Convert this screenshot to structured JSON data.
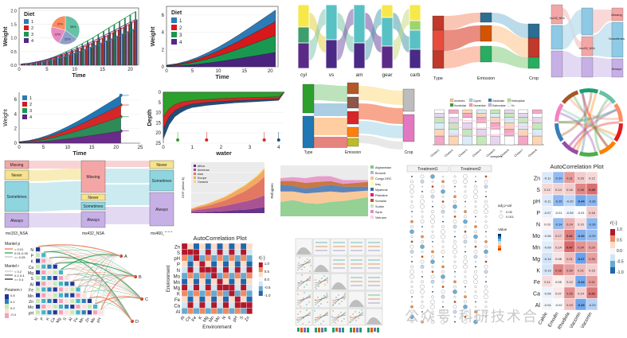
{
  "chart_data": [
    {
      "type": "bar",
      "panel": "diet-weight-bars",
      "legend_title": "Diet",
      "legend_entries": [
        "1",
        "2",
        "3",
        "4"
      ],
      "x": [
        0,
        1,
        2,
        3,
        4,
        5,
        6,
        7,
        8,
        9,
        10,
        11,
        12,
        13,
        14,
        15,
        16,
        17,
        18,
        19,
        20,
        21
      ],
      "xticks": [
        "0",
        "5",
        "10",
        "15",
        "20"
      ],
      "yticks": [
        "0.0",
        "0.5",
        "1.0",
        "1.5",
        "2.0"
      ],
      "xlabel": "Time",
      "ylabel": "Weight",
      "series": [
        {
          "name": "1",
          "values": [
            0.05,
            0.06,
            0.08,
            0.11,
            0.14,
            0.18,
            0.22,
            0.27,
            0.33,
            0.39,
            0.45,
            0.52,
            0.59,
            0.66,
            0.74,
            0.82,
            0.9,
            0.98,
            1.07,
            1.15,
            1.24,
            1.32
          ]
        },
        {
          "name": "2",
          "values": [
            0.05,
            0.06,
            0.09,
            0.12,
            0.16,
            0.21,
            0.27,
            0.33,
            0.4,
            0.47,
            0.55,
            0.63,
            0.72,
            0.81,
            0.9,
            1.0,
            1.1,
            1.2,
            1.3,
            1.4,
            1.5,
            1.62
          ]
        },
        {
          "name": "3",
          "values": [
            0.05,
            0.07,
            0.1,
            0.14,
            0.19,
            0.25,
            0.32,
            0.4,
            0.49,
            0.58,
            0.68,
            0.78,
            0.89,
            1.0,
            1.12,
            1.24,
            1.36,
            1.48,
            1.6,
            1.72,
            1.84,
            1.96
          ]
        },
        {
          "name": "4",
          "values": [
            0.05,
            0.07,
            0.1,
            0.14,
            0.19,
            0.24,
            0.3,
            0.37,
            0.44,
            0.52,
            0.6,
            0.69,
            0.78,
            0.87,
            0.97,
            1.07,
            1.17,
            1.27,
            1.37,
            1.47,
            1.57,
            1.67
          ]
        }
      ],
      "inset_pie": {
        "type": "pie",
        "labels": [
          "1",
          "2",
          "3",
          "4"
        ],
        "values": [
          35,
          22,
          22,
          21
        ],
        "slice_labels": [
          "35%",
          "22%",
          "22%",
          "21%"
        ]
      }
    },
    {
      "type": "area",
      "panel": "diet-weight-stacked",
      "legend_title": "Diet",
      "legend_entries": [
        "1",
        "2",
        "3",
        "4"
      ],
      "x": [
        0,
        2,
        4,
        6,
        8,
        10,
        12,
        14,
        16,
        18,
        20,
        21
      ],
      "xticks": [
        "0",
        "5",
        "10",
        "15",
        "20"
      ],
      "yticks": [
        "0",
        "2",
        "4",
        "6"
      ],
      "xlabel": "Time",
      "ylabel": "Weight",
      "series": [
        {
          "name": "1",
          "values": [
            0.05,
            0.08,
            0.14,
            0.22,
            0.33,
            0.45,
            0.59,
            0.74,
            0.9,
            1.07,
            1.24,
            1.32
          ]
        },
        {
          "name": "2",
          "values": [
            0.05,
            0.09,
            0.16,
            0.27,
            0.4,
            0.55,
            0.72,
            0.9,
            1.1,
            1.3,
            1.5,
            1.62
          ]
        },
        {
          "name": "3",
          "values": [
            0.05,
            0.1,
            0.19,
            0.32,
            0.49,
            0.68,
            0.89,
            1.12,
            1.36,
            1.6,
            1.84,
            1.96
          ]
        },
        {
          "name": "4",
          "values": [
            0.05,
            0.1,
            0.19,
            0.3,
            0.44,
            0.6,
            0.78,
            0.97,
            1.17,
            1.37,
            1.57,
            1.67
          ]
        }
      ]
    },
    {
      "type": "area",
      "panel": "diet-weight-labeled-area",
      "legend_entries": [
        "1",
        "2",
        "3",
        "4"
      ],
      "x": [
        0,
        2,
        4,
        6,
        8,
        10,
        12,
        14,
        16,
        18,
        20,
        21
      ],
      "xticks": [
        "0",
        "5",
        "10",
        "15",
        "20",
        "25"
      ],
      "yticks": [
        "0",
        "2",
        "4",
        "6"
      ],
      "xlabel": "Time",
      "ylabel": "Weight",
      "series": [
        {
          "name": "1",
          "values": [
            0.05,
            0.08,
            0.14,
            0.22,
            0.33,
            0.45,
            0.59,
            0.74,
            0.9,
            1.07,
            1.24,
            1.32
          ]
        },
        {
          "name": "2",
          "values": [
            0.05,
            0.09,
            0.16,
            0.27,
            0.4,
            0.55,
            0.72,
            0.9,
            1.1,
            1.3,
            1.5,
            1.62
          ]
        },
        {
          "name": "3",
          "values": [
            0.05,
            0.1,
            0.19,
            0.32,
            0.49,
            0.68,
            0.89,
            1.12,
            1.36,
            1.6,
            1.84,
            1.96
          ]
        },
        {
          "name": "4",
          "values": [
            0.05,
            0.1,
            0.19,
            0.3,
            0.44,
            0.6,
            0.78,
            0.97,
            1.17,
            1.37,
            1.57,
            1.67
          ]
        }
      ]
    },
    {
      "type": "area",
      "panel": "depth-water",
      "xticks": [
        "0",
        "1",
        "2",
        "3",
        "4"
      ],
      "yticks": [
        "0",
        "5",
        "10",
        "15",
        "20",
        "25"
      ],
      "xlabel": "water",
      "ylabel": "Depth",
      "x": [
        0,
        0.2,
        0.4,
        0.6,
        0.8,
        1.0,
        1.5,
        2.0,
        2.5,
        3.0,
        3.5,
        4.0
      ],
      "series": [
        {
          "name": "a",
          "values": [
            23,
            16,
            12,
            10,
            8.5,
            7.5,
            6.5,
            5.8,
            5.2,
            4.8,
            4.4,
            4.0
          ]
        },
        {
          "name": "b",
          "values": [
            18,
            12,
            9,
            7.5,
            6.5,
            5.8,
            5.0,
            4.5,
            4.1,
            3.8,
            3.5,
            3.2
          ]
        },
        {
          "name": "c",
          "values": [
            12,
            8,
            6,
            5,
            4.4,
            4.0,
            3.5,
            3.1,
            2.8,
            2.6,
            2.4,
            2.2
          ]
        }
      ]
    },
    {
      "type": "area",
      "panel": "disease-area",
      "legend_entries": [
        "Africa",
        "Americas",
        "Asia",
        "Europe",
        "Oceania"
      ],
      "ylabel": "GDP (trillion $)",
      "x": [
        1,
        2,
        3,
        4,
        5,
        6,
        7,
        8,
        9,
        10,
        11,
        12
      ],
      "series": [
        {
          "name": "Africa",
          "values": [
            0.3,
            0.5,
            0.6,
            0.8,
            1.0,
            1.2,
            1.5,
            1.8,
            2.0,
            2.4,
            3.0,
            3.5
          ]
        },
        {
          "name": "Americas",
          "values": [
            1.0,
            1.5,
            1.8,
            2.2,
            2.6,
            3.0,
            3.6,
            4.2,
            4.8,
            5.4,
            6.0,
            7.0
          ]
        },
        {
          "name": "Asia",
          "values": [
            0.8,
            1.2,
            1.6,
            2.0,
            2.6,
            3.2,
            4.0,
            5.0,
            6.0,
            7.5,
            9.0,
            11.0
          ]
        },
        {
          "name": "Europe",
          "values": [
            0.5,
            0.8,
            1.0,
            1.3,
            1.6,
            2.0,
            2.4,
            2.8,
            3.2,
            3.6,
            4.0,
            4.5
          ]
        },
        {
          "name": "Oceania",
          "values": [
            0.1,
            0.1,
            0.2,
            0.2,
            0.3,
            0.3,
            0.4,
            0.4,
            0.5,
            0.5,
            0.6,
            0.7
          ]
        }
      ]
    },
    {
      "type": "area",
      "panel": "refugees-stream",
      "ylabel": "Refugees",
      "legend_entries": [
        "Afghanistan",
        "Burundi",
        "Congo DRC",
        "Iraq",
        "Myanmar",
        "Palestine",
        "Somalia",
        "Sudan",
        "Syria",
        "Vietnam"
      ]
    },
    {
      "type": "heatmap",
      "panel": "mantel-correlation",
      "labels": [
        "N",
        "P",
        "K",
        "Ca",
        "Mg",
        "S",
        "Al",
        "Fe",
        "Mn",
        "Zn",
        "Mo",
        "pH"
      ],
      "mantel_p_legend_title": "Mantel p",
      "mantel_p_entries": [
        "< 0.01",
        "0.01-0.05",
        ">= 0.05"
      ],
      "mantel_r_legend_title": "Mantel r",
      "mantel_r_entries": [
        "< 0.2",
        "0.2-0.4",
        ">= 0.4"
      ],
      "pearson_legend_title": "Pearson r",
      "pearson_ticks": [
        "0.8",
        "0.4",
        "0.0",
        "-0.4"
      ],
      "spec_labels": [
        "A",
        "B",
        "C",
        "D"
      ]
    },
    {
      "type": "heatmap",
      "panel": "autocorrelation-middle",
      "title": "AutoCorrelation Plot",
      "labels": [
        "Zn",
        "S",
        "pH",
        "P",
        "N",
        "Mo",
        "Mn",
        "Mg",
        "K",
        "Fe",
        "Ca",
        "Al"
      ],
      "xlabel": "Environment",
      "ylabel": "Environment",
      "legend_title": "r(-)",
      "legend_ticks": [
        "1.0",
        "0.5",
        "0.0",
        "-0.5",
        "-1.0"
      ]
    },
    {
      "type": "heatmap",
      "panel": "autocorrelation-right",
      "title": "AutoCorrelation Plot",
      "row_labels": [
        "Zn",
        "S",
        "pH",
        "P",
        "N",
        "Mo",
        "Mn",
        "Mg",
        "K",
        "Fe",
        "Ca",
        "Al"
      ],
      "col_labels": [
        "Cakile",
        "Emodin",
        "Rhodiola",
        "Vaccinin",
        "Vaccinin"
      ],
      "legend_title": "r(-)",
      "legend_ticks": [
        "1.0",
        "0.5",
        "0.0",
        "-0.5",
        "-1.0"
      ],
      "values": [
        [
          -0.11,
          -0.34,
          0.31,
          0.16,
          0.12
        ],
        [
          0.12,
          0.14,
          0.16,
          0.38,
          0.45
        ],
        [
          -0.11,
          -0.35,
          -0.2,
          -0.44,
          -0.36
        ],
        [
          -0.07,
          -0.01,
          -0.05,
          -0.01,
          0.16
        ],
        [
          0.03,
          -0.34,
          0.24,
          0.1,
          -0.36
        ],
        [
          -0.06,
          0.17,
          0.41,
          -0.4,
          -0.33
        ],
        [
          -0.09,
          0.14,
          0.47,
          0.34,
          0.29
        ],
        [
          -0.14,
          0.08,
          0.21,
          -0.47,
          0.3
        ],
        [
          -0.13,
          0.38,
          0.3,
          0.21,
          0.15
        ],
        [
          0.11,
          0.05,
          0.12,
          -0.44,
          0.31
        ],
        [
          -0.06,
          0.07,
          0.35,
          0.14,
          0.42
        ],
        [
          -0.04,
          -0.02,
          0.19,
          -0.45,
          -0.23
        ]
      ]
    },
    {
      "type": "scatter",
      "panel": "dot-matrix",
      "group_titles": [
        "Treatment1",
        "Treatment2"
      ],
      "size_legend_title": "adj p-val",
      "size_legend_entries": [
        "0.05",
        "0.001"
      ],
      "color_legend_title": "Value"
    },
    {
      "type": "bar",
      "panel": "stacked-bar-categories",
      "xlabel": "samples",
      "categories": [
        "Cluster1",
        "Cluster2",
        "Cluster3",
        "Cluster4",
        "Cluster5",
        "Cluster6",
        "Cluster7",
        "Cluster8"
      ],
      "legend_entries": [
        "Amniotes",
        "Cyprini",
        "Galaxiidae",
        "Halicepidae",
        "Hominidae",
        "Osmeridae",
        "Salmonidae",
        "Vc"
      ]
    },
    {
      "type": "table",
      "panel": "alluvial-mtcars",
      "axis_labels": [
        "cyl",
        "vs",
        "am",
        "gear",
        "carb"
      ]
    },
    {
      "type": "table",
      "panel": "sankey-type-emission-crop",
      "axis_labels": [
        "Type",
        "Emission",
        "Crop"
      ]
    },
    {
      "type": "table",
      "panel": "sankey-mid",
      "axis_labels": [
        "Type",
        "Emission",
        "Crop"
      ]
    },
    {
      "type": "table",
      "panel": "alluvial-survey",
      "axis_labels": [
        "ms153_NSA",
        "ms432_NSA",
        "ms460_NSA"
      ],
      "node_labels": [
        "Missing",
        "Never",
        "Sometimes",
        "Always"
      ]
    },
    {
      "type": "table",
      "panel": "alluvial-survey-small",
      "axis_labels": [
        "ms153_NSA",
        "ms432_NSA",
        "ms460_NSA"
      ],
      "node_labels": [
        "Missing",
        "Sometimes",
        "Always"
      ]
    }
  ],
  "watermark": "公众号·科研技术合"
}
